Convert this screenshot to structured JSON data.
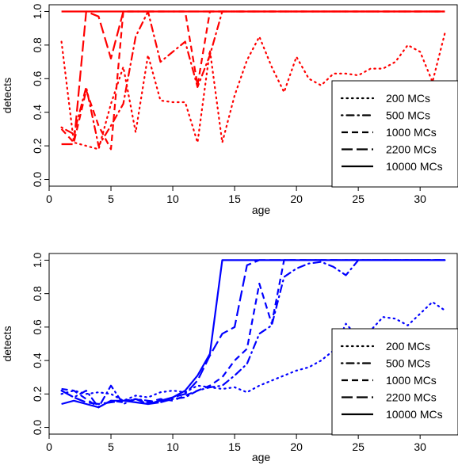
{
  "chart_data": [
    {
      "type": "line",
      "xlabel": "age",
      "ylabel": "detects",
      "xlim": [
        0,
        33
      ],
      "ylim": [
        -0.04,
        1.04
      ],
      "xticks": [
        0,
        5,
        10,
        15,
        20,
        25,
        30
      ],
      "yticks": [
        0.0,
        0.2,
        0.4,
        0.6,
        0.8,
        1.0
      ],
      "grid": false,
      "legend": "bottom-right",
      "color": "#ff0000",
      "series": [
        {
          "name": "200 MCs",
          "dash": "dotted",
          "x": [
            1,
            2,
            3,
            4,
            5,
            6,
            7,
            8,
            9,
            10,
            11,
            12,
            13,
            14,
            15,
            16,
            17,
            18,
            19,
            20,
            21,
            22,
            23,
            24,
            25,
            26,
            27,
            28,
            29,
            30,
            31,
            32
          ],
          "y": [
            0.82,
            0.22,
            0.2,
            0.18,
            0.45,
            0.67,
            0.28,
            0.74,
            0.47,
            0.46,
            0.46,
            0.22,
            0.77,
            0.22,
            0.5,
            0.71,
            0.85,
            0.67,
            0.52,
            0.73,
            0.6,
            0.56,
            0.63,
            0.63,
            0.62,
            0.66,
            0.66,
            0.7,
            0.8,
            0.76,
            0.58,
            0.87
          ]
        },
        {
          "name": "500 MCs",
          "dash": "dotdash",
          "x": [
            1,
            2,
            3,
            4,
            5,
            6,
            7,
            8,
            9,
            10,
            11,
            12,
            13,
            14,
            15,
            16,
            17,
            18,
            19,
            20,
            21,
            22,
            23,
            24,
            25,
            26,
            27,
            28,
            29,
            30,
            31,
            32
          ],
          "y": [
            0.31,
            0.27,
            0.55,
            0.2,
            0.32,
            0.45,
            0.85,
            1.0,
            0.7,
            0.76,
            0.82,
            0.55,
            0.74,
            1.0,
            1.0,
            1.0,
            1.0,
            1.0,
            1.0,
            1.0,
            1.0,
            1.0,
            1.0,
            1.0,
            1.0,
            1.0,
            1.0,
            1.0,
            1.0,
            1.0,
            1.0,
            1.0
          ]
        },
        {
          "name": "1000 MCs",
          "dash": "dashed",
          "x": [
            1,
            2,
            3,
            4,
            5,
            6,
            7,
            8,
            9,
            10,
            11,
            12,
            13,
            14,
            15,
            16,
            17,
            18,
            19,
            20,
            21,
            22,
            23,
            24,
            25,
            26,
            27,
            28,
            29,
            30,
            31,
            32
          ],
          "y": [
            0.3,
            0.22,
            0.53,
            0.32,
            0.18,
            1.0,
            1.0,
            1.0,
            1.0,
            1.0,
            1.0,
            0.56,
            1.0,
            1.0,
            1.0,
            1.0,
            1.0,
            1.0,
            1.0,
            1.0,
            1.0,
            1.0,
            1.0,
            1.0,
            1.0,
            1.0,
            1.0,
            1.0,
            1.0,
            1.0,
            1.0,
            1.0
          ]
        },
        {
          "name": "2200 MCs",
          "dash": "longdash",
          "x": [
            1,
            2,
            3,
            4,
            5,
            6,
            7,
            8,
            9,
            10,
            11,
            12,
            13,
            14,
            15,
            16,
            17,
            18,
            19,
            20,
            21,
            22,
            23,
            24,
            25,
            26,
            27,
            28,
            29,
            30,
            31,
            32
          ],
          "y": [
            0.21,
            0.21,
            1.0,
            0.97,
            0.72,
            1.0,
            1.0,
            1.0,
            1.0,
            1.0,
            1.0,
            1.0,
            1.0,
            1.0,
            1.0,
            1.0,
            1.0,
            1.0,
            1.0,
            1.0,
            1.0,
            1.0,
            1.0,
            1.0,
            1.0,
            1.0,
            1.0,
            1.0,
            1.0,
            1.0,
            1.0,
            1.0
          ]
        },
        {
          "name": "10000 MCs",
          "dash": "solid",
          "x": [
            1,
            2,
            3,
            4,
            5,
            6,
            7,
            8,
            9,
            10,
            11,
            12,
            13,
            14,
            15,
            16,
            17,
            18,
            19,
            20,
            21,
            22,
            23,
            24,
            25,
            26,
            27,
            28,
            29,
            30,
            31,
            32
          ],
          "y": [
            1.0,
            1.0,
            1.0,
            1.0,
            1.0,
            1.0,
            1.0,
            1.0,
            1.0,
            1.0,
            1.0,
            1.0,
            1.0,
            1.0,
            1.0,
            1.0,
            1.0,
            1.0,
            1.0,
            1.0,
            1.0,
            1.0,
            1.0,
            1.0,
            1.0,
            1.0,
            1.0,
            1.0,
            1.0,
            1.0,
            1.0,
            1.0
          ]
        }
      ]
    },
    {
      "type": "line",
      "xlabel": "age",
      "ylabel": "detects",
      "xlim": [
        0,
        33
      ],
      "ylim": [
        -0.04,
        1.04
      ],
      "xticks": [
        0,
        5,
        10,
        15,
        20,
        25,
        30
      ],
      "yticks": [
        0.0,
        0.2,
        0.4,
        0.6,
        0.8,
        1.0
      ],
      "grid": false,
      "legend": "bottom-right",
      "color": "#0000ff",
      "series": [
        {
          "name": "200 MCs",
          "dash": "dotted",
          "x": [
            1,
            2,
            3,
            4,
            5,
            6,
            7,
            8,
            9,
            10,
            11,
            12,
            13,
            14,
            15,
            16,
            17,
            18,
            19,
            20,
            21,
            22,
            23,
            24,
            25,
            26,
            27,
            28,
            29,
            30,
            31,
            32
          ],
          "y": [
            0.2,
            0.22,
            0.2,
            0.21,
            0.2,
            0.16,
            0.19,
            0.18,
            0.21,
            0.22,
            0.21,
            0.25,
            0.24,
            0.23,
            0.24,
            0.21,
            0.25,
            0.28,
            0.31,
            0.34,
            0.36,
            0.4,
            0.46,
            0.62,
            0.54,
            0.58,
            0.66,
            0.65,
            0.61,
            0.68,
            0.75,
            0.7
          ]
        },
        {
          "name": "500 MCs",
          "dash": "dotdash",
          "x": [
            1,
            2,
            3,
            4,
            5,
            6,
            7,
            8,
            9,
            10,
            11,
            12,
            13,
            14,
            15,
            16,
            17,
            18,
            19,
            20,
            21,
            22,
            23,
            24,
            25,
            26,
            27,
            28,
            29,
            30,
            31,
            32
          ],
          "y": [
            0.22,
            0.18,
            0.22,
            0.12,
            0.25,
            0.14,
            0.17,
            0.16,
            0.15,
            0.17,
            0.18,
            0.22,
            0.24,
            0.25,
            0.31,
            0.38,
            0.56,
            0.61,
            0.9,
            0.95,
            0.98,
            0.99,
            0.96,
            0.91,
            1.0,
            1.0,
            1.0,
            1.0,
            1.0,
            1.0,
            1.0,
            1.0
          ]
        },
        {
          "name": "1000 MCs",
          "dash": "dashed",
          "x": [
            1,
            2,
            3,
            4,
            5,
            6,
            7,
            8,
            9,
            10,
            11,
            12,
            13,
            14,
            15,
            16,
            17,
            18,
            19,
            20,
            21,
            22,
            23,
            24,
            25,
            26,
            27,
            28,
            29,
            30,
            31,
            32
          ],
          "y": [
            0.23,
            0.22,
            0.17,
            0.12,
            0.16,
            0.15,
            0.17,
            0.15,
            0.17,
            0.16,
            0.19,
            0.22,
            0.25,
            0.3,
            0.4,
            0.47,
            0.86,
            0.62,
            1.0,
            1.0,
            1.0,
            1.0,
            1.0,
            1.0,
            1.0,
            1.0,
            1.0,
            1.0,
            1.0,
            1.0,
            1.0,
            1.0
          ]
        },
        {
          "name": "2200 MCs",
          "dash": "longdash",
          "x": [
            1,
            2,
            3,
            4,
            5,
            6,
            7,
            8,
            9,
            10,
            11,
            12,
            13,
            14,
            15,
            16,
            17,
            18,
            19,
            20,
            21,
            22,
            23,
            24,
            25,
            26,
            27,
            28,
            29,
            30,
            31,
            32
          ],
          "y": [
            0.22,
            0.18,
            0.15,
            0.14,
            0.15,
            0.16,
            0.17,
            0.14,
            0.15,
            0.18,
            0.2,
            0.28,
            0.43,
            0.56,
            0.6,
            0.97,
            1.0,
            1.0,
            1.0,
            1.0,
            1.0,
            1.0,
            1.0,
            1.0,
            1.0,
            1.0,
            1.0,
            1.0,
            1.0,
            1.0,
            1.0,
            1.0
          ]
        },
        {
          "name": "10000 MCs",
          "dash": "solid",
          "x": [
            1,
            2,
            3,
            4,
            5,
            6,
            7,
            8,
            9,
            10,
            11,
            12,
            13,
            14,
            15,
            16,
            17,
            18,
            19,
            20,
            21,
            22,
            23,
            24,
            25,
            26,
            27,
            28,
            29,
            30,
            31,
            32
          ],
          "y": [
            0.14,
            0.16,
            0.14,
            0.12,
            0.16,
            0.16,
            0.15,
            0.14,
            0.16,
            0.18,
            0.22,
            0.31,
            0.44,
            1.0,
            1.0,
            1.0,
            1.0,
            1.0,
            1.0,
            1.0,
            1.0,
            1.0,
            1.0,
            1.0,
            1.0,
            1.0,
            1.0,
            1.0,
            1.0,
            1.0,
            1.0,
            1.0
          ]
        }
      ]
    }
  ]
}
